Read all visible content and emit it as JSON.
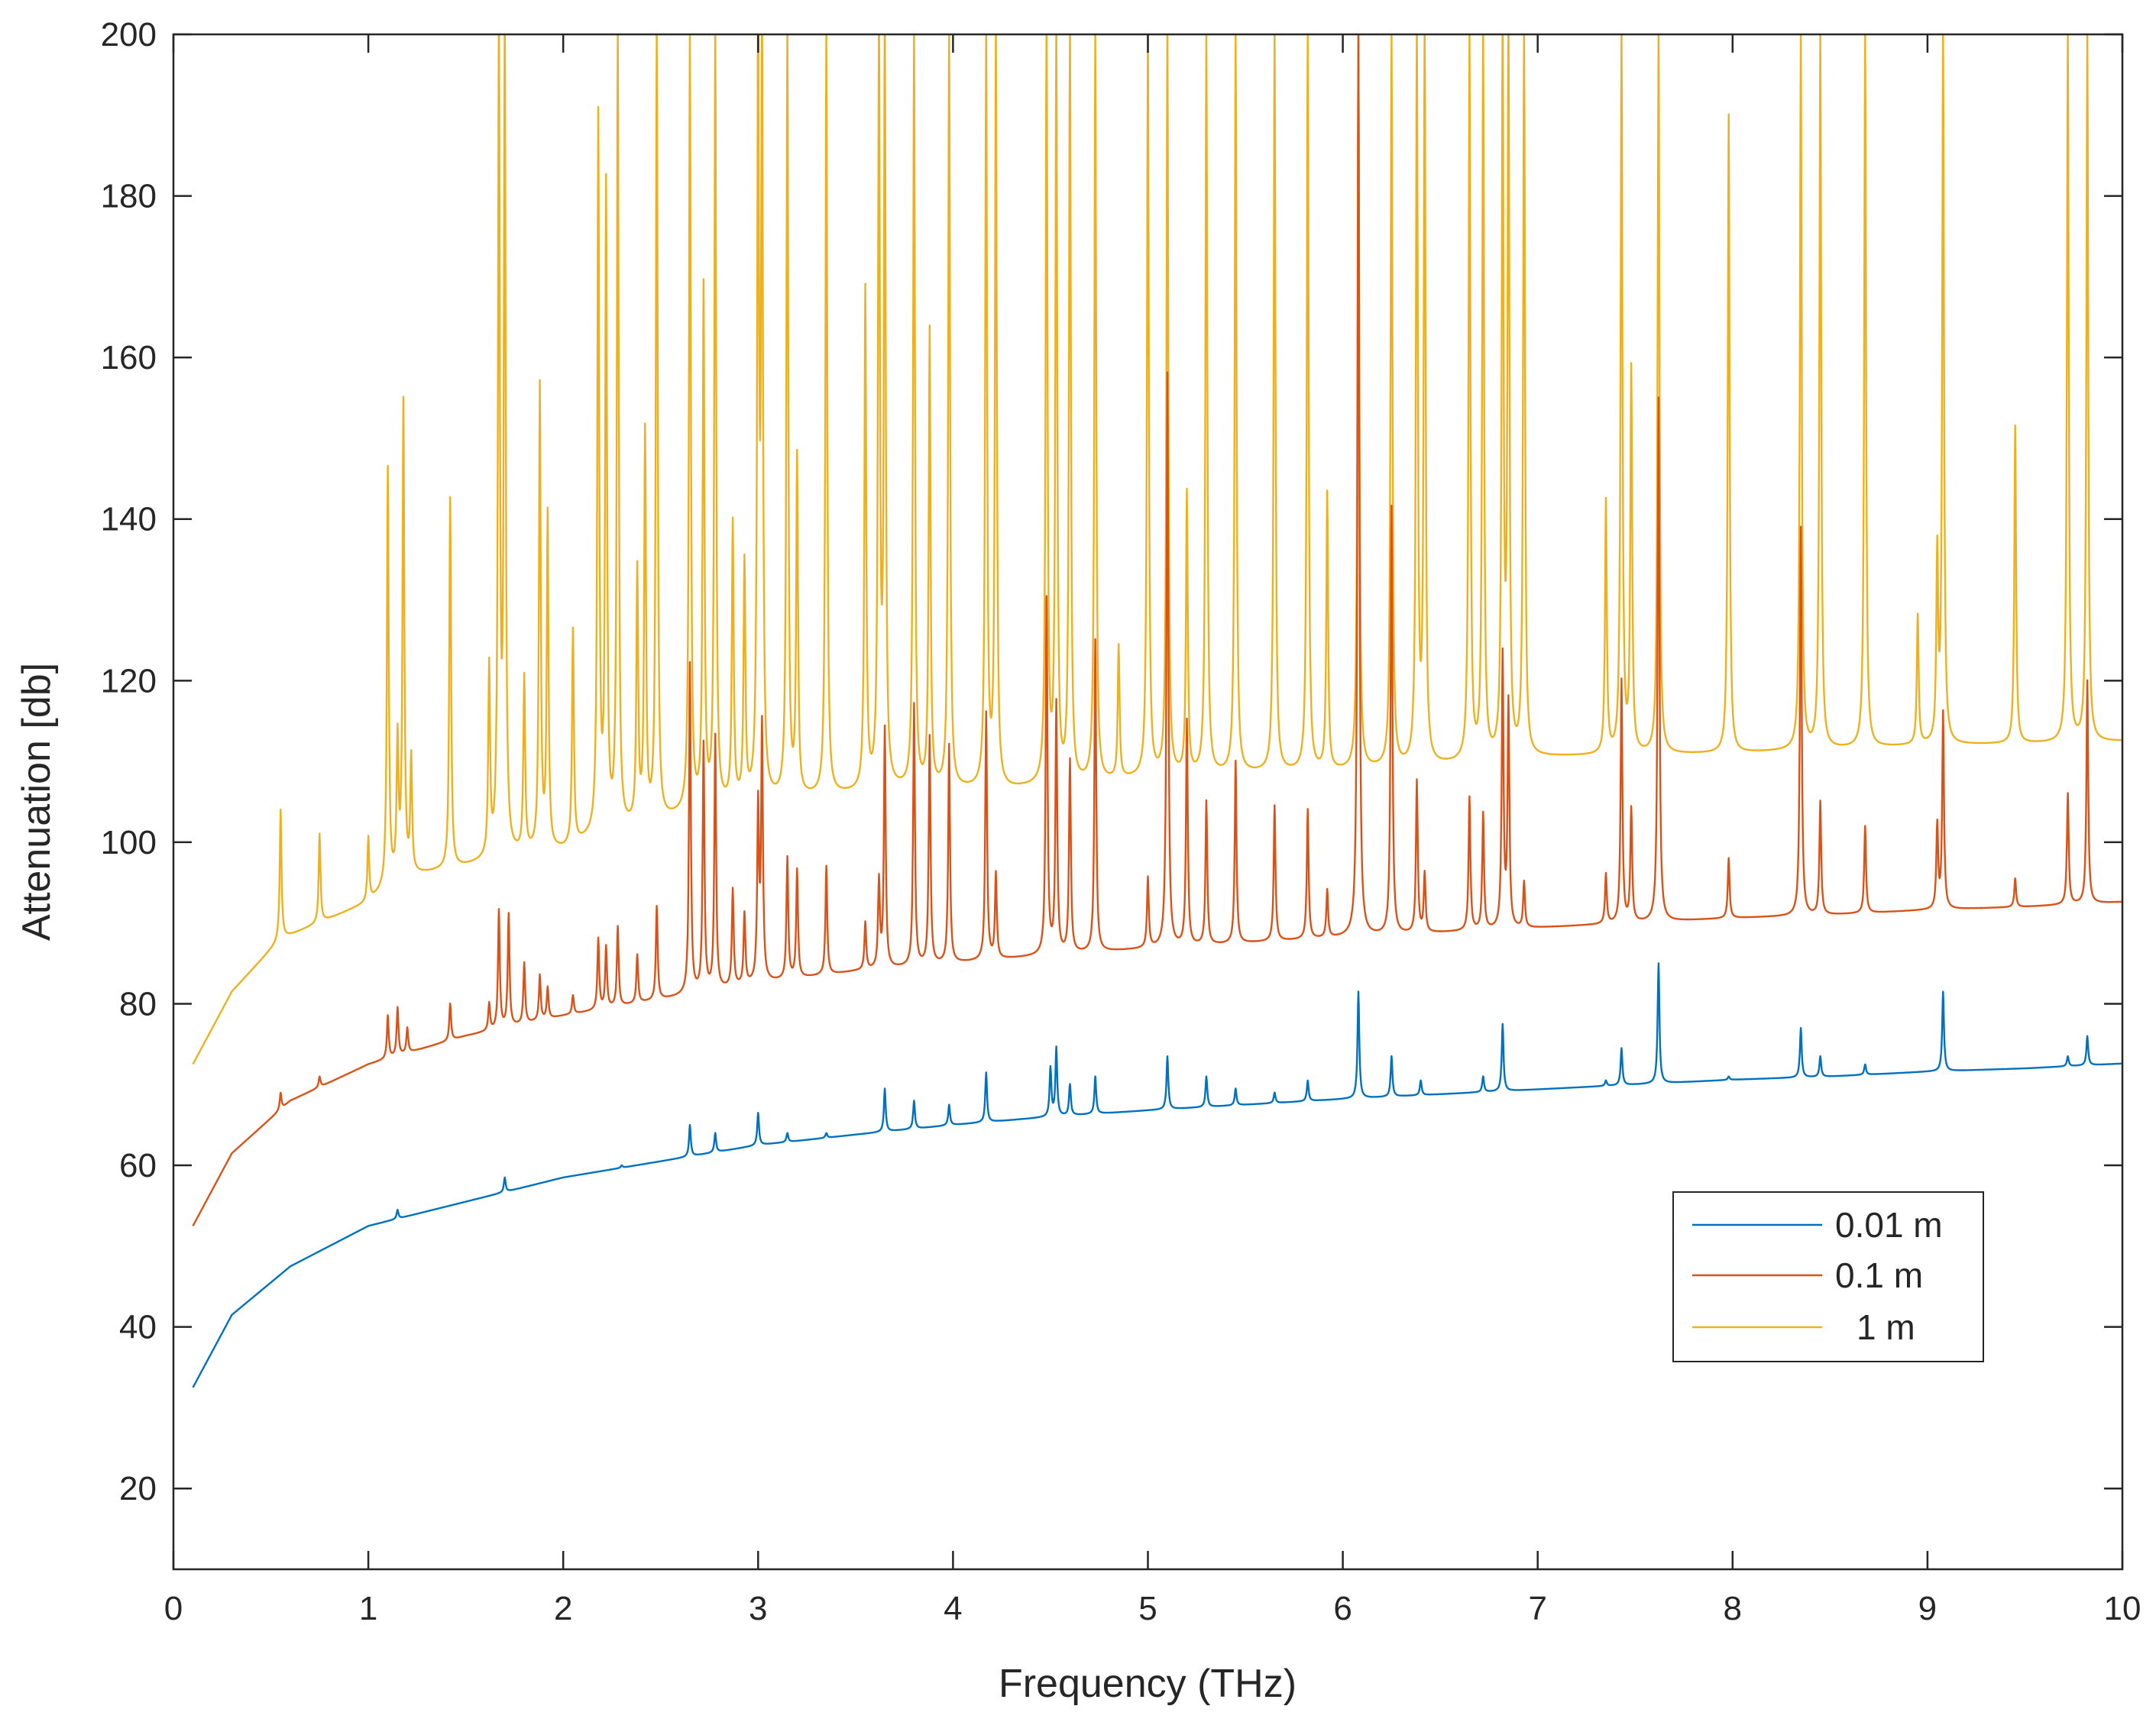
{
  "chart_data": {
    "type": "line",
    "title": "",
    "xlabel": "Frequency (THz)",
    "ylabel": "Attenuation [db]",
    "xlim": [
      0,
      10
    ],
    "ylim": [
      10,
      200
    ],
    "xticks": [
      0,
      1,
      2,
      3,
      4,
      5,
      6,
      7,
      8,
      9,
      10
    ],
    "yticks": [
      20,
      40,
      60,
      80,
      100,
      120,
      140,
      160,
      180,
      200
    ],
    "grid": false,
    "legend_position": "lower-right",
    "x_start": 0.1,
    "series": [
      {
        "name": "0.01 m",
        "color": "#0072BD",
        "baseline": [
          [
            0.1,
            32.5
          ],
          [
            0.3,
            41.5
          ],
          [
            0.6,
            47.5
          ],
          [
            1.0,
            52.5
          ],
          [
            1.5,
            55.5
          ],
          [
            2.0,
            58.5
          ],
          [
            2.5,
            60.5
          ],
          [
            3.0,
            62.5
          ],
          [
            3.5,
            63.8
          ],
          [
            4.0,
            65
          ],
          [
            4.5,
            66
          ],
          [
            5.0,
            66.8
          ],
          [
            5.5,
            67.5
          ],
          [
            6.0,
            68.2
          ],
          [
            6.5,
            68.8
          ],
          [
            7.0,
            69.4
          ],
          [
            7.5,
            70
          ],
          [
            8.0,
            70.6
          ],
          [
            8.5,
            71
          ],
          [
            9.0,
            71.6
          ],
          [
            9.5,
            72
          ],
          [
            10.0,
            72.6
          ]
        ],
        "peaks": [
          [
            1.15,
            54.5
          ],
          [
            1.7,
            58.5
          ],
          [
            2.3,
            60
          ],
          [
            2.65,
            65
          ],
          [
            2.78,
            64
          ],
          [
            3.0,
            66.5
          ],
          [
            3.15,
            64
          ],
          [
            3.35,
            64
          ],
          [
            3.65,
            69.5
          ],
          [
            3.8,
            68
          ],
          [
            3.98,
            67.5
          ],
          [
            4.17,
            71.5
          ],
          [
            4.5,
            72
          ],
          [
            4.53,
            74.5
          ],
          [
            4.6,
            70
          ],
          [
            4.73,
            71
          ],
          [
            5.1,
            73.5
          ],
          [
            5.3,
            71
          ],
          [
            5.45,
            69.5
          ],
          [
            5.65,
            69
          ],
          [
            5.82,
            70.5
          ],
          [
            6.08,
            81.5
          ],
          [
            6.25,
            73.5
          ],
          [
            6.4,
            70.5
          ],
          [
            6.72,
            71
          ],
          [
            6.82,
            77.5
          ],
          [
            7.35,
            70.5
          ],
          [
            7.43,
            74.5
          ],
          [
            7.62,
            85
          ],
          [
            7.98,
            71
          ],
          [
            8.35,
            77
          ],
          [
            8.45,
            73.5
          ],
          [
            8.68,
            72.5
          ],
          [
            9.08,
            81.5
          ],
          [
            9.72,
            73.5
          ],
          [
            9.82,
            76
          ]
        ]
      },
      {
        "name": "0.1 m",
        "color": "#D95319",
        "baseline": [
          [
            0.1,
            52.5
          ],
          [
            0.3,
            61.5
          ],
          [
            0.6,
            68
          ],
          [
            1.0,
            72.5
          ],
          [
            1.5,
            76
          ],
          [
            2.0,
            78.5
          ],
          [
            2.5,
            80.5
          ],
          [
            3.0,
            82.5
          ],
          [
            3.5,
            84
          ],
          [
            4.0,
            85
          ],
          [
            4.5,
            86
          ],
          [
            5.0,
            86.8
          ],
          [
            5.5,
            87.5
          ],
          [
            6.0,
            88.2
          ],
          [
            6.5,
            88.8
          ],
          [
            7.0,
            89.4
          ],
          [
            7.5,
            90
          ],
          [
            8.0,
            90.6
          ],
          [
            8.5,
            91
          ],
          [
            9.0,
            91.6
          ],
          [
            9.5,
            92
          ],
          [
            10.0,
            92.6
          ]
        ],
        "peaks": [
          [
            0.55,
            69
          ],
          [
            0.75,
            71
          ],
          [
            1.1,
            78.5
          ],
          [
            1.15,
            79.5
          ],
          [
            1.2,
            77
          ],
          [
            1.42,
            80
          ],
          [
            1.62,
            80
          ],
          [
            1.67,
            91.5
          ],
          [
            1.72,
            91
          ],
          [
            1.8,
            85
          ],
          [
            1.88,
            83.5
          ],
          [
            1.92,
            82
          ],
          [
            2.05,
            81
          ],
          [
            2.18,
            88
          ],
          [
            2.22,
            87
          ],
          [
            2.28,
            89.5
          ],
          [
            2.38,
            86
          ],
          [
            2.48,
            92
          ],
          [
            2.65,
            122
          ],
          [
            2.72,
            112
          ],
          [
            2.78,
            113
          ],
          [
            2.87,
            94
          ],
          [
            2.93,
            91
          ],
          [
            3.0,
            104
          ],
          [
            3.02,
            114
          ],
          [
            3.15,
            98
          ],
          [
            3.2,
            96.5
          ],
          [
            3.35,
            97
          ],
          [
            3.55,
            90
          ],
          [
            3.62,
            95
          ],
          [
            3.65,
            114
          ],
          [
            3.8,
            117
          ],
          [
            3.88,
            113
          ],
          [
            3.98,
            112
          ],
          [
            4.17,
            116
          ],
          [
            4.22,
            96
          ],
          [
            4.48,
            130
          ],
          [
            4.53,
            117
          ],
          [
            4.6,
            110
          ],
          [
            4.73,
            125
          ],
          [
            5.0,
            95.5
          ],
          [
            5.1,
            158
          ],
          [
            5.2,
            115
          ],
          [
            5.3,
            105
          ],
          [
            5.45,
            110
          ],
          [
            5.65,
            104.5
          ],
          [
            5.82,
            104
          ],
          [
            5.92,
            94
          ],
          [
            6.08,
            200
          ],
          [
            6.25,
            141.5
          ],
          [
            6.38,
            107.5
          ],
          [
            6.42,
            96
          ],
          [
            6.65,
            105.5
          ],
          [
            6.72,
            103.5
          ],
          [
            6.82,
            123
          ],
          [
            6.85,
            117
          ],
          [
            6.93,
            95
          ],
          [
            7.35,
            96
          ],
          [
            7.43,
            120
          ],
          [
            7.48,
            104
          ],
          [
            7.62,
            155
          ],
          [
            7.98,
            98
          ],
          [
            8.35,
            139
          ],
          [
            8.45,
            105
          ],
          [
            8.68,
            102
          ],
          [
            9.05,
            102
          ],
          [
            9.08,
            116
          ],
          [
            9.45,
            95.5
          ],
          [
            9.72,
            106
          ],
          [
            9.82,
            120
          ]
        ]
      },
      {
        "name": "1 m",
        "color": "#EDB120",
        "baseline": [
          [
            0.1,
            72.5
          ],
          [
            0.3,
            81.5
          ],
          [
            0.55,
            88
          ],
          [
            0.6,
            88.5
          ],
          [
            1.0,
            92.5
          ],
          [
            1.15,
            95.5
          ],
          [
            1.5,
            97
          ],
          [
            1.8,
            98.5
          ],
          [
            2.0,
            99
          ],
          [
            2.2,
            101
          ],
          [
            2.5,
            102.5
          ],
          [
            2.7,
            104
          ],
          [
            3.0,
            105
          ],
          [
            3.5,
            106
          ],
          [
            3.6,
            106.5
          ],
          [
            4.0,
            106.5
          ],
          [
            4.3,
            106.5
          ],
          [
            4.5,
            107
          ],
          [
            4.8,
            107.5
          ],
          [
            5.0,
            108
          ],
          [
            5.5,
            108.5
          ],
          [
            6.0,
            108.8
          ],
          [
            6.5,
            109.5
          ],
          [
            7.0,
            110.5
          ],
          [
            7.5,
            110.8
          ],
          [
            8.0,
            111
          ],
          [
            8.5,
            111.5
          ],
          [
            9.0,
            112
          ],
          [
            9.5,
            112.2
          ],
          [
            10.0,
            112.5
          ]
        ],
        "peaks": [
          [
            0.55,
            104
          ],
          [
            0.75,
            101
          ],
          [
            1.0,
            100.5
          ],
          [
            1.1,
            146
          ],
          [
            1.15,
            112
          ],
          [
            1.18,
            154
          ],
          [
            1.22,
            110
          ],
          [
            1.42,
            142.5
          ],
          [
            1.62,
            121
          ],
          [
            1.67,
            200
          ],
          [
            1.7,
            200
          ],
          [
            1.8,
            120
          ],
          [
            1.88,
            156
          ],
          [
            1.92,
            140
          ],
          [
            2.05,
            126
          ],
          [
            2.18,
            189
          ],
          [
            2.22,
            180
          ],
          [
            2.28,
            200
          ],
          [
            2.38,
            133
          ],
          [
            2.42,
            150
          ],
          [
            2.48,
            200
          ],
          [
            2.65,
            200
          ],
          [
            2.72,
            168
          ],
          [
            2.78,
            200
          ],
          [
            2.87,
            139
          ],
          [
            2.93,
            134
          ],
          [
            3.0,
            200
          ],
          [
            3.02,
            200
          ],
          [
            3.15,
            200
          ],
          [
            3.2,
            147
          ],
          [
            3.35,
            200
          ],
          [
            3.55,
            168
          ],
          [
            3.62,
            200
          ],
          [
            3.65,
            200
          ],
          [
            3.8,
            200
          ],
          [
            3.88,
            163
          ],
          [
            3.98,
            200
          ],
          [
            4.17,
            200
          ],
          [
            4.22,
            200
          ],
          [
            4.48,
            200
          ],
          [
            4.53,
            200
          ],
          [
            4.6,
            200
          ],
          [
            4.73,
            200
          ],
          [
            4.85,
            124
          ],
          [
            5.0,
            200
          ],
          [
            5.1,
            200
          ],
          [
            5.2,
            143
          ],
          [
            5.3,
            200
          ],
          [
            5.45,
            200
          ],
          [
            5.65,
            200
          ],
          [
            5.82,
            200
          ],
          [
            5.92,
            143
          ],
          [
            6.08,
            200
          ],
          [
            6.25,
            200
          ],
          [
            6.38,
            200
          ],
          [
            6.42,
            200
          ],
          [
            6.65,
            200
          ],
          [
            6.72,
            200
          ],
          [
            6.82,
            200
          ],
          [
            6.85,
            200
          ],
          [
            6.93,
            200
          ],
          [
            7.35,
            142
          ],
          [
            7.43,
            200
          ],
          [
            7.48,
            158
          ],
          [
            7.62,
            200
          ],
          [
            7.98,
            190
          ],
          [
            8.35,
            200
          ],
          [
            8.45,
            200
          ],
          [
            8.68,
            200
          ],
          [
            8.95,
            128
          ],
          [
            9.05,
            135
          ],
          [
            9.08,
            200
          ],
          [
            9.45,
            151.5
          ],
          [
            9.72,
            200
          ],
          [
            9.82,
            200
          ]
        ]
      }
    ]
  }
}
